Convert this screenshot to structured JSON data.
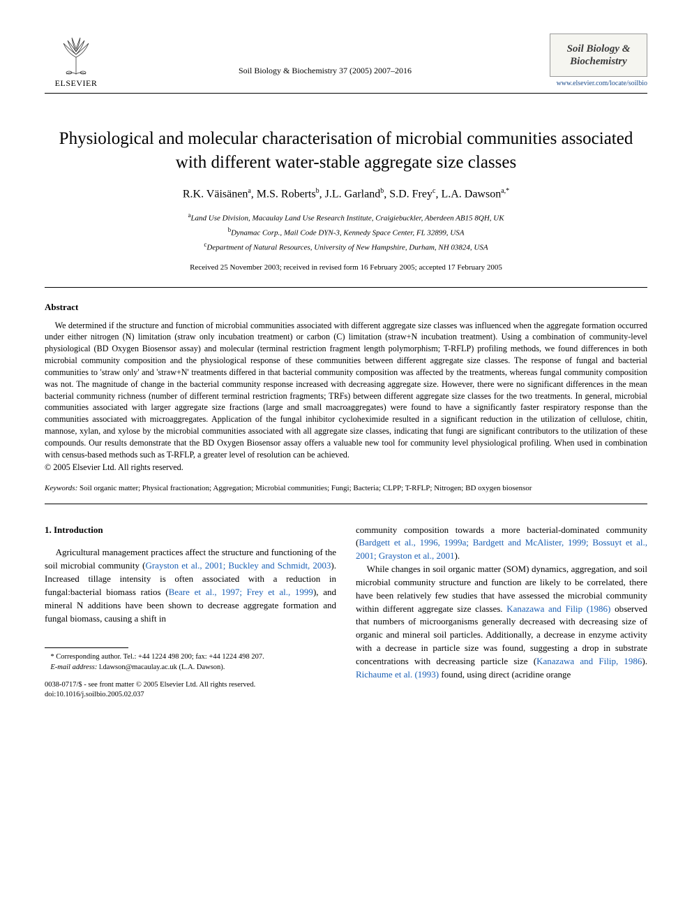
{
  "header": {
    "publisher": "ELSEVIER",
    "citation": "Soil Biology & Biochemistry 37 (2005) 2007–2016",
    "journal_name_line1": "Soil Biology &",
    "journal_name_line2": "Biochemistry",
    "journal_url": "www.elsevier.com/locate/soilbio"
  },
  "article": {
    "title": "Physiological and molecular characterisation of microbial communities associated with different water-stable aggregate size classes",
    "authors_html": "R.K. Väisänen<sup>a</sup>, M.S. Roberts<sup>b</sup>, J.L. Garland<sup>b</sup>, S.D. Frey<sup>c</sup>, L.A. Dawson<sup>a,*</sup>",
    "affiliations": {
      "a": "Land Use Division, Macaulay Land Use Research Institute, Craigiebuckler, Aberdeen AB15 8QH, UK",
      "b": "Dynamac Corp., Mail Code DYN-3, Kennedy Space Center, FL 32899, USA",
      "c": "Department of Natural Resources, University of New Hampshire, Durham, NH 03824, USA"
    },
    "dates": "Received 25 November 2003; received in revised form 16 February 2005; accepted 17 February 2005"
  },
  "abstract": {
    "heading": "Abstract",
    "body": "We determined if the structure and function of microbial communities associated with different aggregate size classes was influenced when the aggregate formation occurred under either nitrogen (N) limitation (straw only incubation treatment) or carbon (C) limitation (straw+N incubation treatment). Using a combination of community-level physiological (BD Oxygen Biosensor assay) and molecular (terminal restriction fragment length polymorphism; T-RFLP) profiling methods, we found differences in both microbial community composition and the physiological response of these communities between different aggregate size classes. The response of fungal and bacterial communities to 'straw only' and 'straw+N' treatments differed in that bacterial community composition was affected by the treatments, whereas fungal community composition was not. The magnitude of change in the bacterial community response increased with decreasing aggregate size. However, there were no significant differences in the mean bacterial community richness (number of different terminal restriction fragments; TRFs) between different aggregate size classes for the two treatments. In general, microbial communities associated with larger aggregate size fractions (large and small macroaggregates) were found to have a significantly faster respiratory response than the communities associated with microaggregates. Application of the fungal inhibitor cycloheximide resulted in a significant reduction in the utilization of cellulose, chitin, mannose, xylan, and xylose by the microbial communities associated with all aggregate size classes, indicating that fungi are significant contributors to the utilization of these compounds. Our results demonstrate that the BD Oxygen Biosensor assay offers a valuable new tool for community level physiological profiling. When used in combination with census-based methods such as T-RFLP, a greater level of resolution can be achieved.",
    "copyright": "© 2005 Elsevier Ltd. All rights reserved."
  },
  "keywords": {
    "label": "Keywords:",
    "text": "Soil organic matter; Physical fractionation; Aggregation; Microbial communities; Fungi; Bacteria; CLPP; T-RFLP; Nitrogen; BD oxygen biosensor"
  },
  "intro": {
    "heading": "1. Introduction",
    "col1_p1_pre": "Agricultural management practices affect the structure and functioning of the soil microbial community (",
    "col1_p1_cite1": "Grayston et al., 2001; Buckley and Schmidt, 2003",
    "col1_p1_mid1": "). Increased tillage intensity is often associated with a reduction in fungal:bacterial biomass ratios (",
    "col1_p1_cite2": "Beare et al., 1997; Frey et al., 1999",
    "col1_p1_mid2": "), and mineral N additions have been shown to decrease aggregate formation and fungal biomass, causing a shift in",
    "col2_p1_pre": "community composition towards a more bacterial-dominated community (",
    "col2_p1_cite1": "Bardgett et al., 1996, 1999a; Bardgett and McAlister, 1999; Bossuyt et al., 2001; Grayston et al., 2001",
    "col2_p1_post": ").",
    "col2_p2_pre": "While changes in soil organic matter (SOM) dynamics, aggregation, and soil microbial community structure and function are likely to be correlated, there have been relatively few studies that have assessed the microbial community within different aggregate size classes. ",
    "col2_p2_cite1": "Kanazawa and Filip (1986)",
    "col2_p2_mid1": " observed that numbers of microorganisms generally decreased with decreasing size of organic and mineral soil particles. Additionally, a decrease in enzyme activity with a decrease in particle size was found, suggesting a drop in substrate concentrations with decreasing particle size (",
    "col2_p2_cite2": "Kanazawa and Filip, 1986",
    "col2_p2_mid2": "). ",
    "col2_p2_cite3": "Richaume et al. (1993)",
    "col2_p2_post": " found, using direct (acridine orange"
  },
  "footnotes": {
    "corr": "* Corresponding author. Tel.: +44 1224 498 200; fax: +44 1224 498 207.",
    "email_label": "E-mail address:",
    "email": "l.dawson@macaulay.ac.uk (L.A. Dawson).",
    "issn": "0038-0717/$ - see front matter © 2005 Elsevier Ltd. All rights reserved.",
    "doi": "doi:10.1016/j.soilbio.2005.02.037"
  },
  "colors": {
    "link": "#1a5fb4",
    "text": "#000000",
    "background": "#ffffff"
  }
}
